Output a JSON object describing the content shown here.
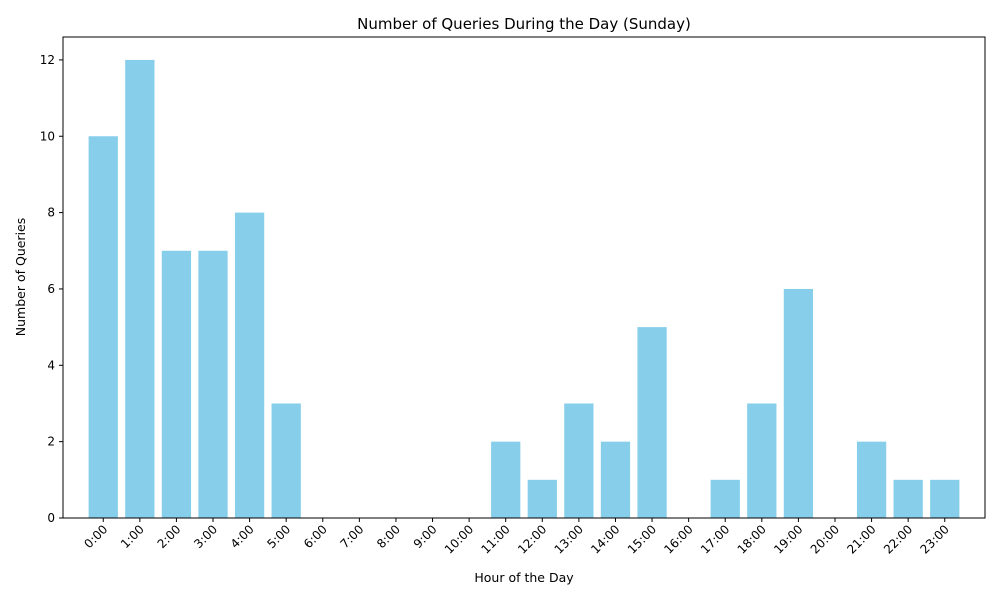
{
  "chart_data": {
    "type": "bar",
    "title": "Number of Queries During the Day (Sunday)",
    "xlabel": "Hour of the Day",
    "ylabel": "Number of Queries",
    "categories": [
      "0:00",
      "1:00",
      "2:00",
      "3:00",
      "4:00",
      "5:00",
      "6:00",
      "7:00",
      "8:00",
      "9:00",
      "10:00",
      "11:00",
      "12:00",
      "13:00",
      "14:00",
      "15:00",
      "16:00",
      "17:00",
      "18:00",
      "19:00",
      "20:00",
      "21:00",
      "22:00",
      "23:00"
    ],
    "values": [
      10,
      12,
      7,
      7,
      8,
      3,
      0,
      0,
      0,
      0,
      0,
      2,
      1,
      3,
      2,
      5,
      0,
      1,
      3,
      6,
      0,
      2,
      1,
      1
    ],
    "ylim": [
      0,
      12.6
    ],
    "yticks": [
      0,
      2,
      4,
      6,
      8,
      10,
      12
    ],
    "bar_color": "#87CEEB",
    "grid": false,
    "legend": "none"
  }
}
